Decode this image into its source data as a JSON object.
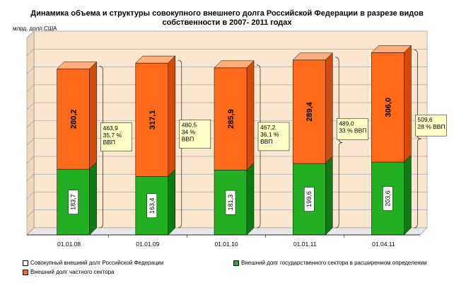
{
  "title": "Динамика объема и структуры  совокупного внешнего долга Российской Федерации в разрезе видов собственности в 2007- 2011 годах",
  "unit_label": "млрд. долл.США",
  "colors": {
    "public": "#22b022",
    "public_top": "#7ddc74",
    "public_side": "#0d7a12",
    "private": "#ff6a1a",
    "private_top": "#ffad7a",
    "private_side": "#d44a08",
    "annotation_bg": "#ffffc8",
    "wall": "#fbe6d0"
  },
  "legend": {
    "total": "Совокупный  внешний долг Российской Федерации",
    "public": "Внешний долг государственного сектора в расширенном определении",
    "private": "Внешний долг частного сектора"
  },
  "chart_data": {
    "type": "bar",
    "stacked": true,
    "categories": [
      "01.01.08",
      "01.01.09",
      "01.01.10",
      "01.01.11",
      "01.04.11"
    ],
    "series": [
      {
        "name": "Внешний долг государственного сектора в расширенном определении",
        "values": [
          183.7,
          163.4,
          181.3,
          199.6,
          203.6
        ],
        "labels": [
          "183,7",
          "163,4",
          "181,3",
          "199,6",
          "203,6"
        ]
      },
      {
        "name": "Внешний долг частного сектора",
        "values": [
          280.2,
          317.1,
          285.9,
          289.4,
          306.0
        ],
        "labels": [
          "280,2",
          "317,1",
          "285,9",
          "289,4",
          "306,0"
        ]
      }
    ],
    "totals": [
      {
        "value": "463,9",
        "share": "35,7  %",
        "gdp": "ВВП"
      },
      {
        "value": "480,5",
        "share": "34  %",
        "gdp": "ВВП"
      },
      {
        "value": "467,2",
        "share": "36,1 %",
        "gdp": "ВВП"
      },
      {
        "value": "489,0",
        "share": "33 % ВВП",
        "gdp": ""
      },
      {
        "value": "509,6",
        "share": "28 % ВВП",
        "gdp": ""
      }
    ],
    "ylim": [
      0,
      550
    ],
    "grid": true,
    "legend_position": "bottom"
  }
}
